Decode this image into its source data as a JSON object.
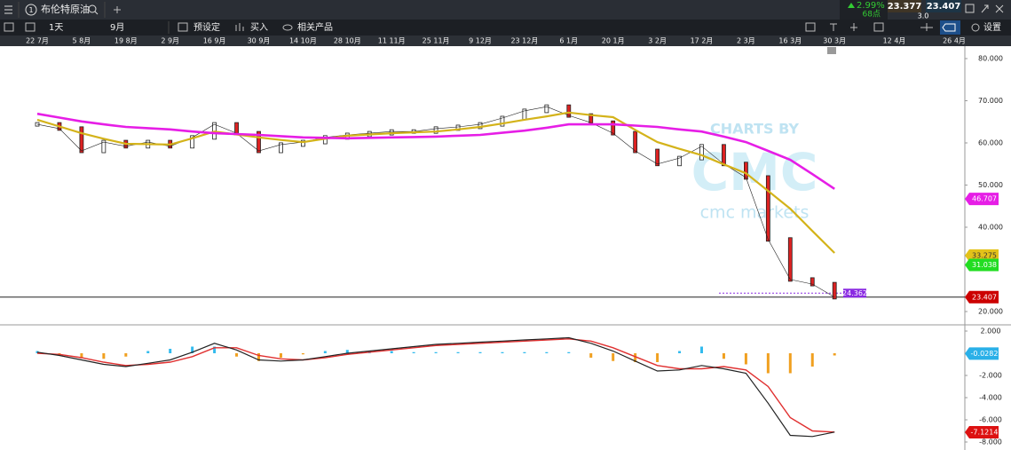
{
  "top_bar": {
    "instrument_no": "1",
    "instrument": "布伦特原油",
    "change": "2.99%",
    "points": "68点",
    "sell": "23.377",
    "spread": "3.0",
    "buy": "23.407"
  },
  "toolbar": {
    "timeframe": "1天",
    "period": "9月",
    "preset": "预设定",
    "buy": "买入",
    "related": "相关产品",
    "settings": "设置"
  },
  "watermark": {
    "top": "CHARTS BY",
    "logo": "CMC",
    "bottom": "cmc markets"
  },
  "chart_data": [
    {
      "type": "line",
      "categories": [
        "22 7月",
        null,
        "5 8月",
        null,
        "19 8月",
        null,
        "2 9月",
        null,
        "16 9月",
        null,
        "30 9月",
        null,
        "14 10月",
        null,
        "28 10月",
        null,
        "11 11月",
        null,
        "25 11月",
        null,
        "9 12月",
        null,
        "23 12月",
        null,
        "6 1月",
        null,
        "20 1月",
        null,
        "3 2月",
        null,
        "17 2月",
        null,
        "2 3月",
        null,
        "16 3月",
        null,
        "30 3月",
        null,
        "12 4月",
        null,
        "26 4月"
      ],
      "series": [
        {
          "color": "#222222",
          "values": [
            64.4,
            63.4,
            58.1,
            60.2,
            59.2,
            60.2,
            59.2,
            61.3,
            64.4,
            62.3,
            58.1,
            59.6,
            60.2,
            61.3,
            61.9,
            62.3,
            62.7,
            62.7,
            63.4,
            63.8,
            64.4,
            65.9,
            67.6,
            68.6,
            66.5,
            64.8,
            62.3,
            58.1,
            55.0,
            56.4,
            59.2,
            55.0,
            51.8,
            37.1,
            27.6,
            26.5,
            23.4,
            null,
            null,
            null,
            null
          ]
        },
        {
          "color": "#e61ee6",
          "values": [
            66.9,
            66.0,
            65.1,
            64.4,
            63.8,
            63.5,
            63.2,
            62.7,
            62.3,
            62.1,
            61.9,
            61.6,
            61.3,
            61.2,
            61.1,
            61.2,
            61.3,
            61.4,
            61.5,
            61.7,
            61.9,
            62.4,
            62.9,
            63.6,
            64.4,
            64.4,
            64.4,
            64.1,
            63.8,
            63.2,
            62.7,
            61.5,
            60.2,
            58.1,
            56.0,
            52.6,
            49.1,
            null,
            null,
            null,
            null
          ]
        },
        {
          "color": "#d4b31a",
          "values": [
            65.5,
            63.9,
            62.3,
            61.0,
            59.8,
            59.7,
            59.6,
            61.1,
            62.7,
            62.0,
            61.3,
            60.7,
            60.2,
            61.0,
            61.7,
            62.0,
            62.3,
            62.5,
            62.7,
            63.2,
            63.8,
            64.6,
            65.5,
            66.3,
            67.2,
            66.6,
            66.1,
            63.1,
            60.2,
            58.6,
            57.1,
            54.9,
            52.8,
            48.6,
            44.4,
            39.1,
            33.9,
            null,
            null,
            null,
            null
          ]
        }
      ],
      "ylim": [
        17.05,
        82.95
      ],
      "yticks": [
        {
          "value": 20,
          "label": "20.000"
        },
        {
          "value": 40,
          "label": "40.000"
        },
        {
          "value": 50,
          "label": "50.000"
        },
        {
          "value": 60,
          "label": "60.000"
        },
        {
          "value": 70,
          "label": "70.000"
        },
        {
          "value": 80,
          "label": "80.000"
        }
      ],
      "price_tags": [
        {
          "value": 46.707,
          "color": "#e61ee6",
          "text_color": "#ffffff"
        },
        {
          "value": 33.275,
          "color": "#e3c21a",
          "text_color": "#333333"
        },
        {
          "value": 31.038,
          "color": "#22dd22",
          "text_color": "#ffffff"
        },
        {
          "value": 23.407,
          "color": "#cc0000",
          "text_color": "#ffffff"
        }
      ],
      "marker_tag": {
        "value": 24.362,
        "color": "#8a2be2"
      }
    },
    {
      "type": "macd",
      "series": [
        {
          "color": "#222222",
          "values": [
            0.1,
            -0.2,
            -0.6,
            -1.0,
            -1.2,
            -0.9,
            -0.6,
            0.1,
            0.9,
            0.3,
            -0.6,
            -0.7,
            -0.6,
            -0.3,
            0,
            0.2,
            0.4,
            0.6,
            0.8,
            0.9,
            1.0,
            1.1,
            1.2,
            1.3,
            1.4,
            0.9,
            0.2,
            -0.7,
            -1.6,
            -1.5,
            -1.1,
            -1.4,
            -1.8,
            -4.5,
            -7.4,
            -7.5,
            -7.1,
            null,
            null,
            null,
            null
          ]
        },
        {
          "color": "#e03030",
          "values": [
            0.0,
            -0.1,
            -0.4,
            -0.8,
            -1.1,
            -1.0,
            -0.8,
            -0.3,
            0.5,
            0.5,
            -0.2,
            -0.5,
            -0.6,
            -0.4,
            -0.1,
            0.1,
            0.3,
            0.5,
            0.7,
            0.8,
            0.9,
            1.0,
            1.1,
            1.2,
            1.3,
            1.1,
            0.5,
            -0.3,
            -1.1,
            -1.4,
            -1.4,
            -1.2,
            -1.5,
            -3.0,
            -5.8,
            -7.0,
            -7.1,
            null,
            null,
            null,
            null
          ]
        }
      ],
      "histogram": {
        "color": "#33bbee",
        "negative_color": "#f0a020",
        "values": [
          0.2,
          -0.2,
          -0.4,
          -0.5,
          -0.3,
          0.2,
          0.4,
          0.6,
          0.6,
          -0.3,
          -0.7,
          -0.4,
          -0.1,
          0.2,
          0.3,
          0.2,
          0.2,
          0.1,
          0.1,
          0.1,
          0.1,
          0.1,
          0.1,
          0.1,
          0.1,
          -0.4,
          -0.7,
          -0.8,
          -0.8,
          0.2,
          0.6,
          -0.5,
          -1.0,
          -1.8,
          -1.8,
          -1.2,
          -0.2,
          null,
          null,
          null,
          null
        ]
      },
      "ylim": [
        -8.72,
        2.48
      ],
      "yticks": [
        {
          "value": 2,
          "label": "2.000"
        },
        {
          "value": -2,
          "label": "-2.000"
        },
        {
          "value": -4,
          "label": "-4.000"
        },
        {
          "value": -6,
          "label": "-6.000"
        },
        {
          "value": -8,
          "label": "-8.000"
        }
      ],
      "price_tags": [
        {
          "value": -0.0282,
          "color": "#2ab0e8",
          "text_color": "#ffffff"
        },
        {
          "value": -7.1214,
          "color": "#dd1111",
          "text_color": "#ffffff"
        }
      ]
    }
  ]
}
